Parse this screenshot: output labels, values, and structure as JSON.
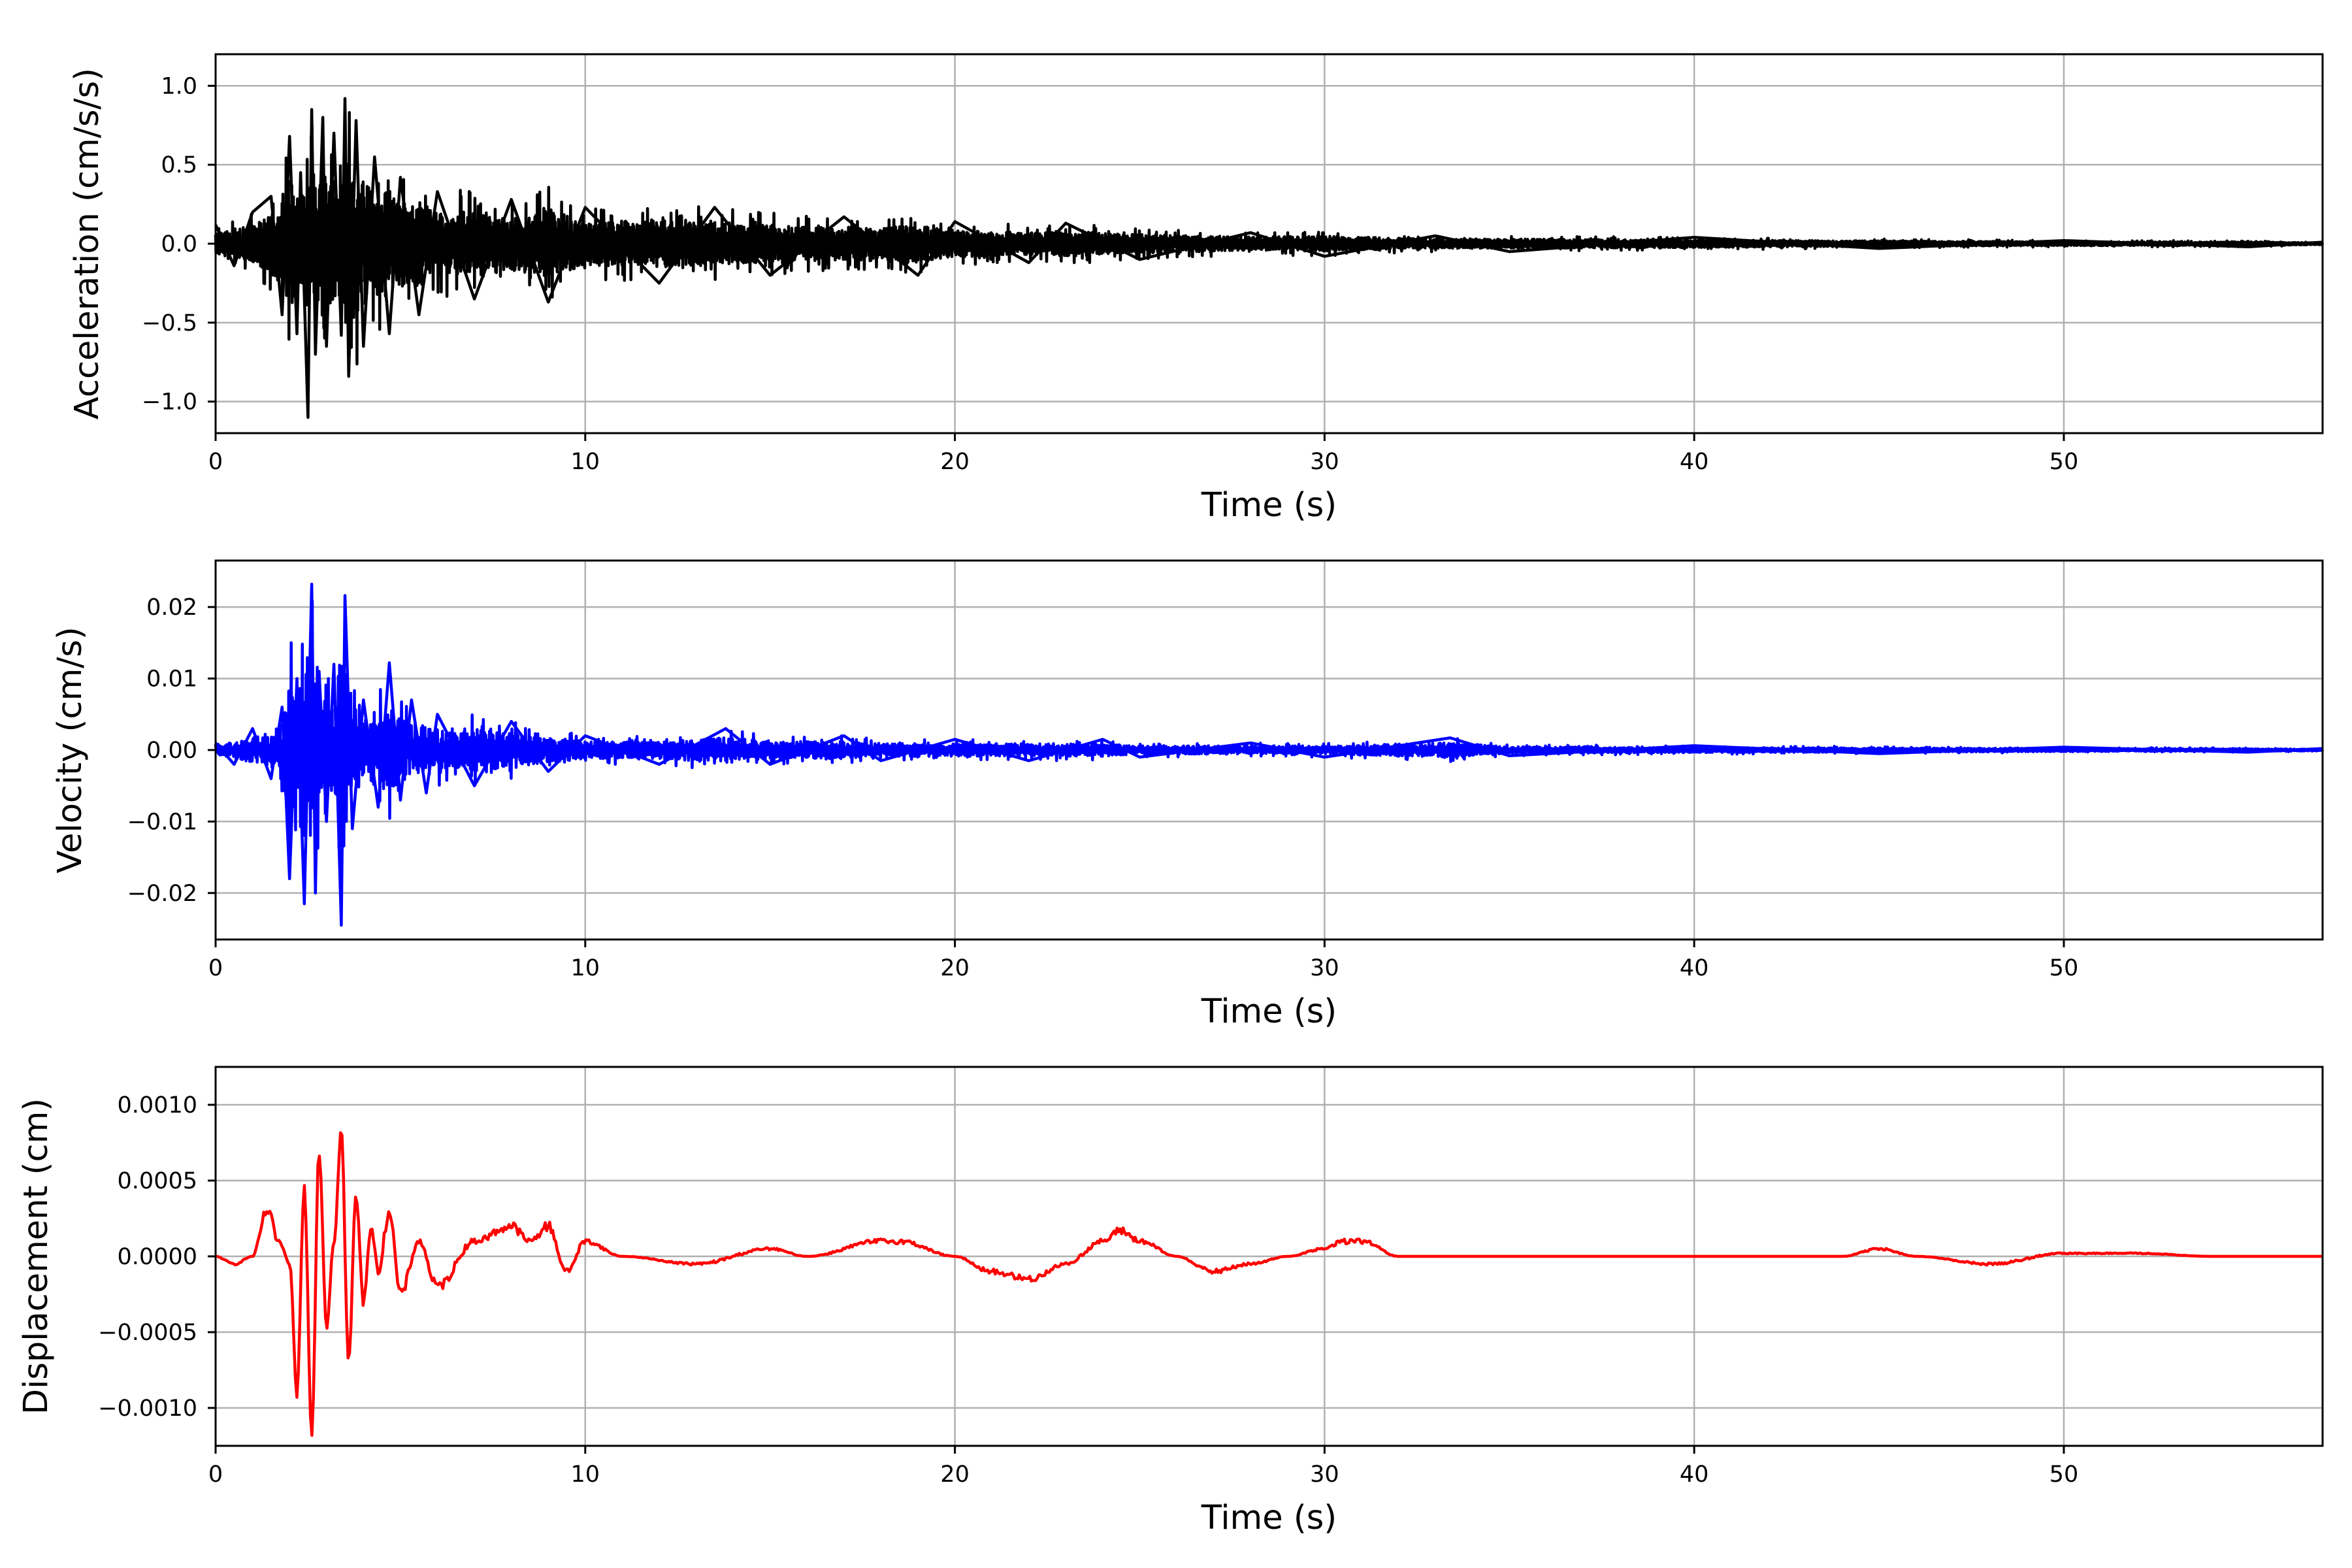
{
  "chart_data": [
    {
      "type": "line",
      "xlabel": "Time (s)",
      "ylabel": "Acceleration (cm/s/s)",
      "xlim": [
        0,
        57
      ],
      "ylim": [
        -1.2,
        1.2
      ],
      "xticks": [
        0,
        10,
        20,
        30,
        40,
        50
      ],
      "xtick_labels": [
        "0",
        "10",
        "20",
        "30",
        "40",
        "50"
      ],
      "yticks": [
        -1.0,
        -0.5,
        0.0,
        0.5,
        1.0
      ],
      "ytick_labels": [
        "−1.0",
        "−0.5",
        "0.0",
        "0.5",
        "1.0"
      ],
      "grid": true,
      "color": "#000000",
      "series": [
        {
          "x": [
            0,
            0.5,
            1.0,
            1.5,
            1.8,
            2.0,
            2.2,
            2.3,
            2.5,
            2.6,
            2.7,
            2.9,
            3.0,
            3.2,
            3.4,
            3.5,
            3.6,
            3.8,
            4.0,
            4.3,
            4.7,
            5.0,
            5.5,
            6.0,
            7.0,
            8.0,
            9.0,
            10.0,
            12.0,
            13.5,
            15.0,
            17.0,
            19.0,
            20.0,
            22.0,
            23.0,
            25.0,
            28.0,
            30.0,
            33.0,
            35.0,
            40.0,
            45.0,
            50.0,
            55.0,
            57.0
          ],
          "y": [
            0.12,
            -0.14,
            0.2,
            0.3,
            -0.45,
            0.68,
            -0.57,
            0.45,
            -1.1,
            0.85,
            -0.7,
            0.8,
            -0.65,
            0.7,
            -0.58,
            0.92,
            -0.84,
            0.78,
            -0.65,
            0.55,
            -0.57,
            0.42,
            -0.45,
            0.33,
            -0.35,
            0.28,
            -0.37,
            0.23,
            -0.25,
            0.23,
            -0.2,
            0.17,
            -0.2,
            0.14,
            -0.12,
            0.13,
            -0.1,
            0.07,
            -0.08,
            0.05,
            -0.05,
            0.04,
            -0.03,
            0.02,
            -0.02,
            0.01
          ]
        }
      ]
    },
    {
      "type": "line",
      "xlabel": "Time (s)",
      "ylabel": "Velocity (cm/s)",
      "xlim": [
        0,
        57
      ],
      "ylim": [
        -0.0265,
        0.0265
      ],
      "xticks": [
        0,
        10,
        20,
        30,
        40,
        50
      ],
      "xtick_labels": [
        "0",
        "10",
        "20",
        "30",
        "40",
        "50"
      ],
      "yticks": [
        -0.02,
        -0.01,
        0.0,
        0.01,
        0.02
      ],
      "ytick_labels": [
        "−0.02",
        "−0.01",
        "0.00",
        "0.01",
        "0.02"
      ],
      "grid": true,
      "color": "#0000ff",
      "series": [
        {
          "x": [
            0,
            0.5,
            1.0,
            1.5,
            1.8,
            2.0,
            2.2,
            2.4,
            2.6,
            2.7,
            2.8,
            3.0,
            3.2,
            3.4,
            3.5,
            3.7,
            4.0,
            4.4,
            4.7,
            5.0,
            5.3,
            5.7,
            6.0,
            7.0,
            8.0,
            9.0,
            10.0,
            12.0,
            13.8,
            15.0,
            17.0,
            18.0,
            20.0,
            22.0,
            24.0,
            25.0,
            28.0,
            30.0,
            33.4,
            35.0,
            40.0,
            45.0,
            50.0,
            55.0,
            57.0
          ],
          "y": [
            0.001,
            -0.002,
            0.003,
            -0.004,
            0.006,
            -0.018,
            0.01,
            -0.0215,
            0.0232,
            -0.02,
            0.011,
            -0.01,
            0.012,
            -0.0245,
            0.0216,
            -0.011,
            0.007,
            -0.008,
            0.0122,
            -0.007,
            0.007,
            -0.006,
            0.005,
            -0.005,
            0.004,
            -0.003,
            0.002,
            -0.002,
            0.003,
            -0.002,
            0.002,
            -0.0015,
            0.0015,
            -0.0015,
            0.0015,
            -0.001,
            0.001,
            -0.001,
            0.0017,
            -0.0008,
            0.0006,
            -0.0005,
            0.0004,
            -0.0003,
            0.0002
          ]
        }
      ]
    },
    {
      "type": "line",
      "xlabel": "Time (s)",
      "ylabel": "Displacement (cm)",
      "xlim": [
        0,
        57
      ],
      "ylim": [
        -0.00125,
        0.00125
      ],
      "xticks": [
        0,
        10,
        20,
        30,
        40,
        50
      ],
      "xtick_labels": [
        "0",
        "10",
        "20",
        "30",
        "40",
        "50"
      ],
      "yticks": [
        -0.001,
        -0.0005,
        0.0,
        0.0005,
        0.001
      ],
      "ytick_labels": [
        "−0.0010",
        "−0.0005",
        "0.0000",
        "0.0005",
        "0.0010"
      ],
      "grid": true,
      "color": "#ff0000",
      "series": [
        {
          "x": [
            0,
            0.5,
            1.0,
            1.4,
            1.7,
            2.0,
            2.2,
            2.4,
            2.6,
            2.8,
            3.0,
            3.2,
            3.4,
            3.6,
            3.8,
            4.0,
            4.2,
            4.4,
            4.7,
            5.0,
            5.5,
            6.0,
            7.0,
            8.0,
            8.5,
            9.0,
            9.5,
            10.0,
            11.0,
            13.0,
            15.0,
            16.0,
            18.0,
            18.5,
            20.0,
            21.0,
            22.0,
            23.0,
            24.0,
            24.5,
            25.0,
            26.0,
            27.0,
            28.0,
            29.0,
            30.0,
            30.5,
            31.0,
            32.0,
            34.0,
            36.0,
            38.0,
            40.0,
            42.0,
            44.0,
            45.0,
            46.0,
            48.0,
            50.0,
            52.0,
            54.0,
            57.0
          ],
          "y": [
            0.0,
            -5e-05,
            0.0,
            0.0003,
            0.0001,
            -5e-05,
            -0.0009,
            0.00045,
            -0.00115,
            0.0007,
            -0.00045,
            0.0001,
            0.00083,
            -0.0007,
            0.0004,
            -0.0003,
            0.0002,
            -0.0001,
            0.0003,
            -0.00025,
            0.0001,
            -0.0002,
            0.0001,
            0.0002,
            0.0001,
            0.0002,
            -0.0001,
            0.0001,
            0.0,
            -5e-05,
            5e-05,
            0.0,
            0.0001,
            0.0001,
            0.0,
            -0.0001,
            -0.00015,
            -5e-05,
            0.0001,
            0.00017,
            0.0001,
            0.0,
            -0.0001,
            -5e-05,
            0.0,
            5e-05,
            0.0001,
            0.0001,
            0.0,
            0.0,
            0.0,
            0.0,
            0.0,
            0.0,
            0.0,
            5e-05,
            0.0,
            -5e-05,
            2e-05,
            2e-05,
            0.0,
            0.0
          ]
        }
      ]
    }
  ]
}
